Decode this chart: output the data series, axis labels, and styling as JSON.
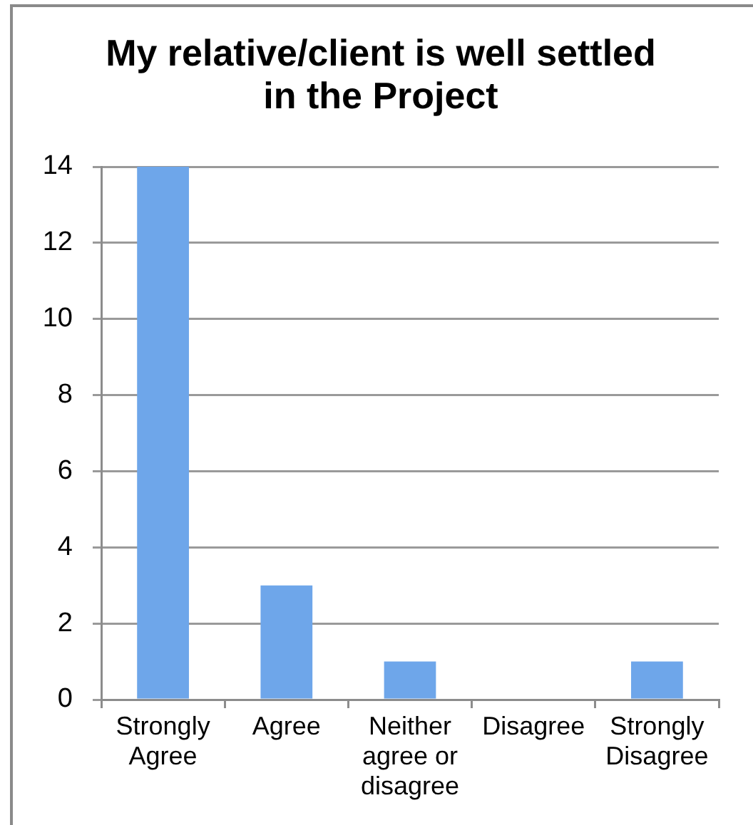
{
  "chart_data": {
    "type": "bar",
    "title": "My relative/client is well settled in the Project",
    "categories": [
      "Strongly Agree",
      "Agree",
      "Neither agree or disagree",
      "Disagree",
      "Strongly Disagree"
    ],
    "values": [
      14,
      3,
      1,
      0,
      1
    ],
    "color": "#6ea6ea",
    "ylim": [
      0,
      14
    ],
    "yticks": [
      0,
      2,
      4,
      6,
      8,
      10,
      12,
      14
    ],
    "grid": "y"
  }
}
